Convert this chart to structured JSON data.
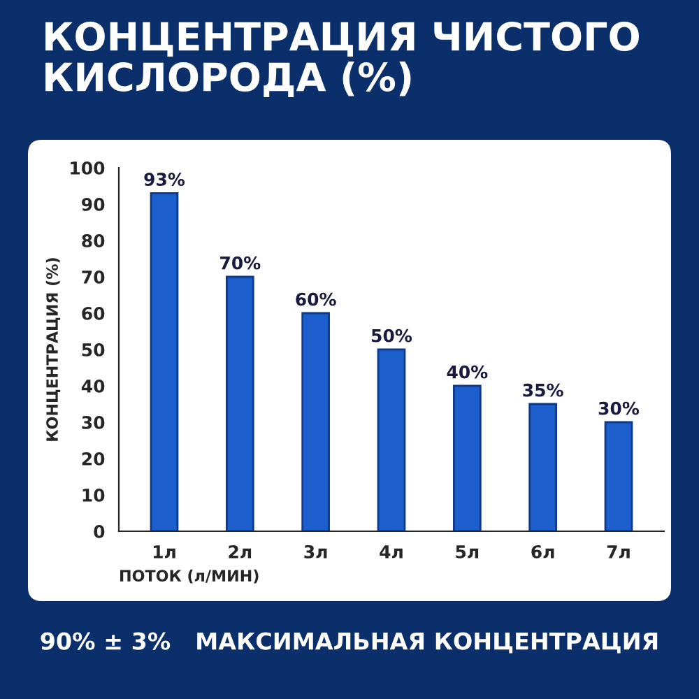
{
  "chart_data": {
    "type": "bar",
    "title": "КОНЦЕНТРАЦИЯ ЧИСТОГО\nКИСЛОРОДА (%)",
    "categories": [
      "1л",
      "2л",
      "3л",
      "4л",
      "5л",
      "6л",
      "7л"
    ],
    "values": [
      93,
      70,
      60,
      50,
      40,
      35,
      30
    ],
    "value_labels": [
      "93%",
      "70%",
      "60%",
      "50%",
      "40%",
      "35%",
      "30%"
    ],
    "color": "#1c5fcc",
    "xlabel": "ПОТОК (л/МИН)",
    "ylabel": "КОНЦЕНТРАЦИЯ (%)",
    "ylim": [
      0,
      100
    ],
    "yticks": [
      0,
      10,
      20,
      30,
      40,
      50,
      60,
      70,
      80,
      90,
      100
    ],
    "annotations": [
      "90% ± 3%   МАКСИМАЛЬНАЯ КОНЦЕНТРАЦИЯ"
    ],
    "grid": false
  }
}
